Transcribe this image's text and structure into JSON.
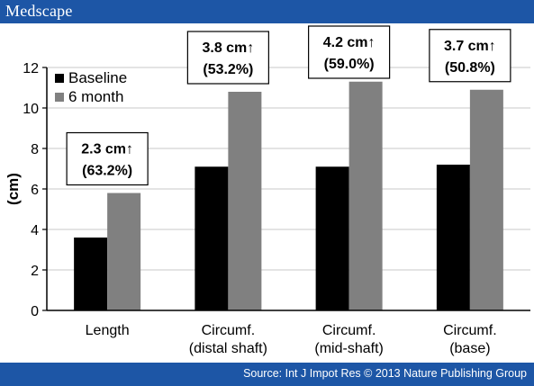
{
  "header": {
    "brand": "Medscape"
  },
  "footer": {
    "source": "Source: Int J Impot Res © 2013 Nature Publishing Group"
  },
  "colors": {
    "bar_band": "#1d56a6",
    "baseline": "#000000",
    "six_month": "#808080"
  },
  "chart_data": {
    "type": "bar",
    "ylabel": "(cm)",
    "ylim": [
      0,
      12
    ],
    "yticks": [
      0,
      2,
      4,
      6,
      8,
      10,
      12
    ],
    "grid": true,
    "legend_position": "top-left",
    "categories": [
      [
        "Length"
      ],
      [
        "Circumf.",
        "(distal shaft)"
      ],
      [
        "Circumf.",
        "(mid-shaft)"
      ],
      [
        "Circumf.",
        "(base)"
      ]
    ],
    "series": [
      {
        "name": "Baseline",
        "values": [
          3.6,
          7.1,
          7.1,
          7.2
        ]
      },
      {
        "name": "6 month",
        "values": [
          5.8,
          10.8,
          11.3,
          10.9
        ]
      }
    ],
    "annotations": [
      {
        "lines": [
          "2.3 cm↑",
          "(63.2%)"
        ]
      },
      {
        "lines": [
          "3.8 cm↑",
          "(53.2%)"
        ]
      },
      {
        "lines": [
          "4.2 cm↑",
          "(59.0%)"
        ]
      },
      {
        "lines": [
          "3.7 cm↑",
          "(50.8%)"
        ]
      }
    ]
  }
}
